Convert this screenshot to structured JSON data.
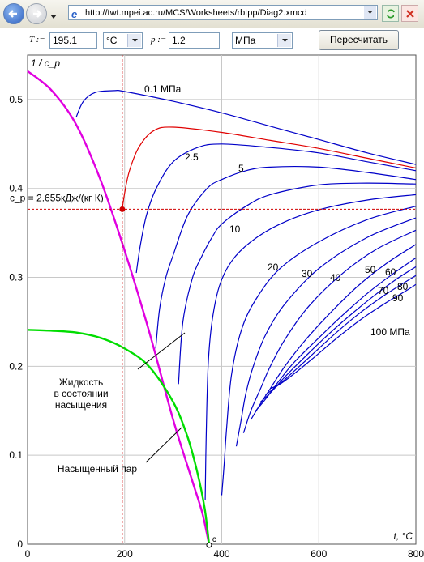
{
  "browser": {
    "address": "http://twt.mpei.ac.ru/MCS/Worksheets/rbtpp/Diag2.xmcd"
  },
  "form": {
    "t_label": "T :=",
    "t_value": "195.1",
    "t_unit": "°C",
    "p_label": "p :=",
    "p_value": "1.2",
    "p_unit": "МПа",
    "recalc_button": "Пересчитать"
  },
  "chart_data": {
    "type": "line",
    "ylabel": "1 / c_p",
    "xlabel": "t, °C",
    "xlim": [
      0,
      800
    ],
    "ylim": [
      0,
      0.55
    ],
    "x_ticks": [
      "0",
      "200",
      "400",
      "600",
      "800"
    ],
    "y_ticks": [
      "0",
      "0.1",
      "0.2",
      "0.3",
      "0.4",
      "0.5"
    ],
    "grid": true,
    "cp_readout": "c_p = 2.655кДж/(кг К)",
    "crosshair": {
      "t": 195.1,
      "inv_cp": 0.3766
    },
    "critical_point_label": "c",
    "annotations": [
      "Жидкость в состоянии насыщения",
      "Насыщенный пар"
    ],
    "isobar_labels": [
      "0.1 МПа",
      "2.5",
      "5",
      "10",
      "20",
      "30",
      "40",
      "50",
      "60",
      "70",
      "80",
      "90",
      "100 МПа"
    ],
    "colors": {
      "isobar": "#0000c8",
      "selected_isobar": "#e00000",
      "liquid": "#e000e0",
      "vapor": "#00dd00",
      "crosshair": "#d00000"
    },
    "series": [
      {
        "p": 0.1,
        "x": [
          100,
          115,
          140,
          180,
          200,
          300,
          400,
          500,
          600,
          700,
          800
        ],
        "y": [
          0.48,
          0.498,
          0.508,
          0.51,
          0.509,
          0.498,
          0.485,
          0.47,
          0.455,
          0.44,
          0.427
        ]
      },
      {
        "p": 1.2,
        "selected": true,
        "x": [
          195.1,
          200,
          210,
          230,
          260,
          300,
          400,
          500,
          600,
          700,
          800
        ],
        "y": [
          0.3766,
          0.395,
          0.42,
          0.447,
          0.465,
          0.469,
          0.463,
          0.454,
          0.445,
          0.434,
          0.423
        ]
      },
      {
        "p": 2.5,
        "x": [
          224,
          232,
          245,
          265,
          300,
          350,
          400,
          500,
          600,
          700,
          800
        ],
        "y": [
          0.305,
          0.335,
          0.37,
          0.4,
          0.43,
          0.446,
          0.45,
          0.446,
          0.44,
          0.43,
          0.42
        ]
      },
      {
        "p": 5,
        "x": [
          264,
          272,
          285,
          300,
          330,
          370,
          400,
          450,
          500,
          600,
          700,
          800
        ],
        "y": [
          0.22,
          0.265,
          0.3,
          0.325,
          0.37,
          0.4,
          0.41,
          0.42,
          0.424,
          0.424,
          0.418,
          0.41
        ]
      },
      {
        "p": 10,
        "x": [
          311,
          320,
          340,
          360,
          380,
          400,
          450,
          500,
          600,
          700,
          800
        ],
        "y": [
          0.18,
          0.25,
          0.3,
          0.325,
          0.345,
          0.36,
          0.38,
          0.393,
          0.404,
          0.406,
          0.405
        ]
      },
      {
        "p": 20,
        "x": [
          366,
          368,
          372,
          380,
          395,
          420,
          460,
          520,
          600,
          700,
          800
        ],
        "y": [
          0.05,
          0.12,
          0.2,
          0.25,
          0.29,
          0.318,
          0.34,
          0.36,
          0.376,
          0.387,
          0.393
        ]
      },
      {
        "p": 30,
        "x": [
          400,
          405,
          410,
          420,
          440,
          470,
          520,
          600,
          700,
          800
        ],
        "y": [
          0.055,
          0.09,
          0.13,
          0.19,
          0.24,
          0.275,
          0.31,
          0.34,
          0.365,
          0.38
        ]
      },
      {
        "p": 40,
        "x": [
          430,
          440,
          450,
          465,
          490,
          530,
          600,
          700,
          800
        ],
        "y": [
          0.11,
          0.14,
          0.17,
          0.2,
          0.235,
          0.27,
          0.31,
          0.345,
          0.367
        ]
      },
      {
        "p": 50,
        "x": [
          445,
          460,
          480,
          500,
          530,
          580,
          650,
          720,
          800
        ],
        "y": [
          0.125,
          0.15,
          0.175,
          0.2,
          0.23,
          0.268,
          0.305,
          0.332,
          0.353
        ]
      },
      {
        "p": 60,
        "x": [
          460,
          480,
          500,
          530,
          570,
          620,
          680,
          740,
          800
        ],
        "y": [
          0.14,
          0.158,
          0.175,
          0.2,
          0.228,
          0.258,
          0.29,
          0.316,
          0.337
        ]
      },
      {
        "p": 70,
        "x": [
          470,
          490,
          520,
          550,
          600,
          650,
          700,
          750,
          800
        ],
        "y": [
          0.15,
          0.163,
          0.185,
          0.205,
          0.232,
          0.258,
          0.282,
          0.303,
          0.322
        ]
      },
      {
        "p": 80,
        "x": [
          480,
          500,
          530,
          570,
          620,
          670,
          720,
          760,
          800
        ],
        "y": [
          0.16,
          0.17,
          0.188,
          0.21,
          0.236,
          0.26,
          0.282,
          0.298,
          0.312
        ]
      },
      {
        "p": 90,
        "x": [
          490,
          510,
          540,
          580,
          630,
          680,
          730,
          770,
          800
        ],
        "y": [
          0.168,
          0.176,
          0.19,
          0.21,
          0.235,
          0.258,
          0.278,
          0.292,
          0.302
        ]
      },
      {
        "p": 100,
        "x": [
          500,
          520,
          550,
          590,
          640,
          690,
          740,
          780,
          800
        ],
        "y": [
          0.175,
          0.18,
          0.192,
          0.21,
          0.233,
          0.254,
          0.272,
          0.285,
          0.292
        ]
      }
    ],
    "liquid_saturation": {
      "x": [
        0,
        50,
        100,
        150,
        200,
        250,
        300,
        330,
        350,
        365,
        374
      ],
      "y": [
        0.241,
        0.24,
        0.238,
        0.232,
        0.22,
        0.2,
        0.16,
        0.12,
        0.08,
        0.04,
        0.0
      ]
    },
    "vapor_saturation": {
      "x": [
        0,
        50,
        100,
        150,
        200,
        250,
        300,
        340,
        360,
        374
      ],
      "y": [
        0.532,
        0.51,
        0.472,
        0.41,
        0.33,
        0.24,
        0.14,
        0.07,
        0.035,
        0.0
      ]
    }
  }
}
